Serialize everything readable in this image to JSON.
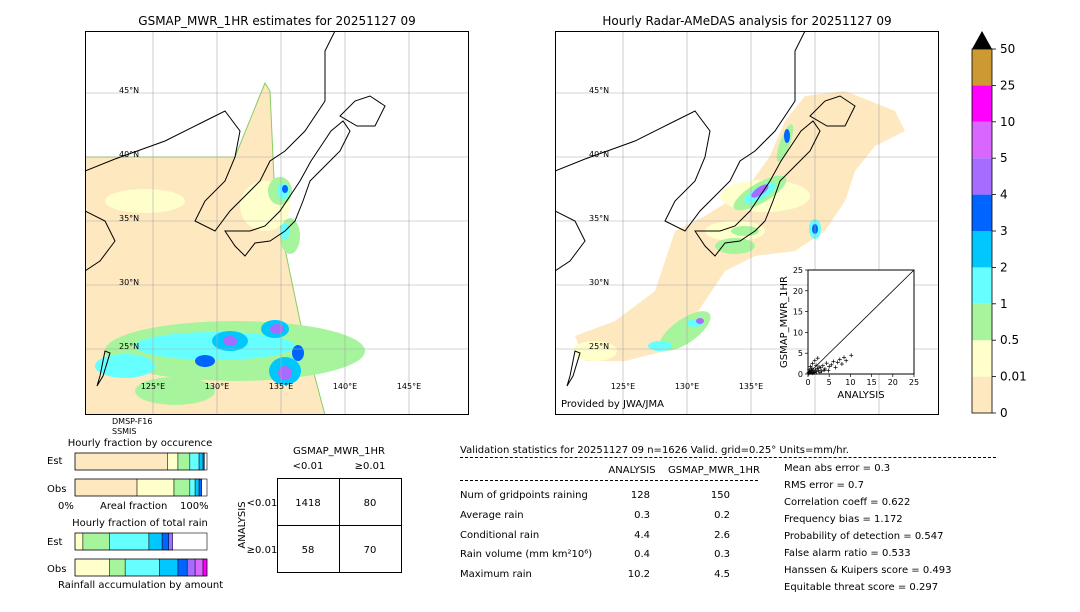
{
  "left_map": {
    "title": "GSMAP_MWR_1HR estimates for 20251127 09",
    "lat_labels": [
      "45°N",
      "40°N",
      "35°N",
      "30°N",
      "25°N"
    ],
    "lon_labels": [
      "125°E",
      "130°E",
      "135°E",
      "140°E",
      "145°E"
    ],
    "sensors": [
      "DMSP-F16",
      "SSMIS"
    ]
  },
  "right_map": {
    "title": "Hourly Radar-AMeDAS analysis for 20251127 09",
    "lat_labels": [
      "45°N",
      "40°N",
      "35°N",
      "30°N",
      "25°N"
    ],
    "lon_labels": [
      "125°E",
      "130°E",
      "135°E"
    ],
    "credit": "Provided by JWA/JMA"
  },
  "colorbar": {
    "labels": [
      "0",
      "0.01",
      "0.5",
      "1",
      "2",
      "3",
      "4",
      "5",
      "10",
      "25",
      "50"
    ],
    "colors": [
      "#fee8c0",
      "#ffffcc",
      "#a6f59c",
      "#66ffff",
      "#00c8ff",
      "#0064ff",
      "#a66bff",
      "#d966ff",
      "#ff00ff",
      "#cc9933"
    ],
    "over_color": "#000000"
  },
  "chart_data": [
    {
      "type": "scatter",
      "xlabel": "ANALYSIS",
      "ylabel": "GSMAP_MWR_1HR",
      "xlim": [
        0,
        25
      ],
      "ylim": [
        0,
        25
      ],
      "xticks": [
        "0",
        "5",
        "10",
        "15",
        "20",
        "25"
      ],
      "yticks": [
        "0",
        "5",
        "10",
        "15",
        "20",
        "25"
      ],
      "points": [
        [
          0.2,
          0.1
        ],
        [
          0.5,
          0.3
        ],
        [
          0.8,
          0.5
        ],
        [
          1.0,
          0.2
        ],
        [
          1.2,
          0.8
        ],
        [
          1.5,
          0.4
        ],
        [
          1.8,
          1.0
        ],
        [
          2.0,
          0.6
        ],
        [
          2.2,
          1.3
        ],
        [
          2.5,
          0.9
        ],
        [
          3.0,
          1.5
        ],
        [
          3.2,
          0.7
        ],
        [
          3.5,
          2.0
        ],
        [
          4.0,
          1.2
        ],
        [
          4.4,
          2.6
        ],
        [
          5.0,
          1.8
        ],
        [
          5.5,
          2.2
        ],
        [
          6.0,
          3.0
        ],
        [
          6.5,
          1.6
        ],
        [
          7.0,
          2.8
        ],
        [
          7.5,
          3.5
        ],
        [
          8.0,
          2.4
        ],
        [
          8.5,
          4.0
        ],
        [
          9.0,
          3.2
        ],
        [
          10.2,
          4.5
        ],
        [
          0.3,
          1.0
        ],
        [
          0.6,
          1.8
        ],
        [
          1.1,
          2.5
        ],
        [
          1.6,
          3.2
        ],
        [
          2.3,
          3.8
        ],
        [
          0.4,
          0.6
        ],
        [
          0.9,
          1.4
        ],
        [
          1.4,
          0.3
        ],
        [
          2.8,
          0.4
        ],
        [
          3.8,
          0.9
        ],
        [
          0.1,
          0.4
        ],
        [
          0.7,
          0.9
        ],
        [
          1.9,
          2.1
        ],
        [
          2.6,
          1.7
        ],
        [
          4.8,
          0.8
        ]
      ]
    },
    {
      "type": "bar",
      "title": "Hourly fraction by occurence",
      "rows": [
        "Est",
        "Obs"
      ],
      "xlabel": "Areal fraction",
      "x_left": "0%",
      "x_right": "100%",
      "segments": {
        "Est": [
          {
            "color": "#fee8c0",
            "value": 0.7
          },
          {
            "color": "#ffffcc",
            "value": 0.08
          },
          {
            "color": "#a6f59c",
            "value": 0.09
          },
          {
            "color": "#66ffff",
            "value": 0.07
          },
          {
            "color": "#00c8ff",
            "value": 0.03
          },
          {
            "color": "#0064ff",
            "value": 0.01
          }
        ],
        "Obs": [
          {
            "color": "#fee8c0",
            "value": 0.47
          },
          {
            "color": "#ffffcc",
            "value": 0.28
          },
          {
            "color": "#a6f59c",
            "value": 0.12
          },
          {
            "color": "#66ffff",
            "value": 0.04
          },
          {
            "color": "#00c8ff",
            "value": 0.03
          },
          {
            "color": "#0064ff",
            "value": 0.02
          }
        ]
      }
    },
    {
      "type": "bar",
      "title": "Hourly fraction of total rain",
      "rows": [
        "Est",
        "Obs"
      ],
      "xlabel": "Rainfall accumulation by amount",
      "segments": {
        "Est": [
          {
            "color": "#ffffcc",
            "value": 0.06
          },
          {
            "color": "#a6f59c",
            "value": 0.2
          },
          {
            "color": "#66ffff",
            "value": 0.3
          },
          {
            "color": "#00c8ff",
            "value": 0.1
          },
          {
            "color": "#0064ff",
            "value": 0.05
          },
          {
            "color": "#a66bff",
            "value": 0.03
          }
        ],
        "Obs": [
          {
            "color": "#ffffcc",
            "value": 0.26
          },
          {
            "color": "#a6f59c",
            "value": 0.12
          },
          {
            "color": "#66ffff",
            "value": 0.26
          },
          {
            "color": "#00c8ff",
            "value": 0.14
          },
          {
            "color": "#0064ff",
            "value": 0.07
          },
          {
            "color": "#a66bff",
            "value": 0.06
          },
          {
            "color": "#d966ff",
            "value": 0.06
          },
          {
            "color": "#ff00ff",
            "value": 0.03
          }
        ]
      }
    },
    {
      "type": "table",
      "title": "GSMAP_MWR_1HR",
      "col_headers": [
        "<0.01",
        "≥0.01"
      ],
      "row_headers": [
        "<0.01",
        "≥0.01"
      ],
      "row_axis_label": "ANALYSIS",
      "cells": [
        [
          "1418",
          "80"
        ],
        [
          "58",
          "70"
        ]
      ]
    }
  ],
  "validation": {
    "header": "Validation statistics for 20251127 09  n=1626 Valid. grid=0.25° Units=mm/hr.",
    "col_analysis": "ANALYSIS",
    "col_gsmap": "GSMAP_MWR_1HR",
    "rows": [
      {
        "label": "Num of gridpoints raining",
        "analysis": "128",
        "gsmap": "150"
      },
      {
        "label": "Average rain",
        "analysis": "0.3",
        "gsmap": "0.2"
      },
      {
        "label": "Conditional rain",
        "analysis": "4.4",
        "gsmap": "2.6"
      },
      {
        "label": "Rain volume (mm km²10⁶)",
        "analysis": "0.4",
        "gsmap": "0.3"
      },
      {
        "label": "Maximum rain",
        "analysis": "10.2",
        "gsmap": "4.5"
      }
    ],
    "scores": [
      "Mean abs error =    0.3",
      "RMS error =    0.7",
      "Correlation coeff =  0.622",
      "Frequency bias =  1.172",
      "Probability of detection =  0.547",
      "False alarm ratio =  0.533",
      "Hanssen & Kuipers score =  0.493",
      "Equitable threat score =  0.297"
    ]
  }
}
